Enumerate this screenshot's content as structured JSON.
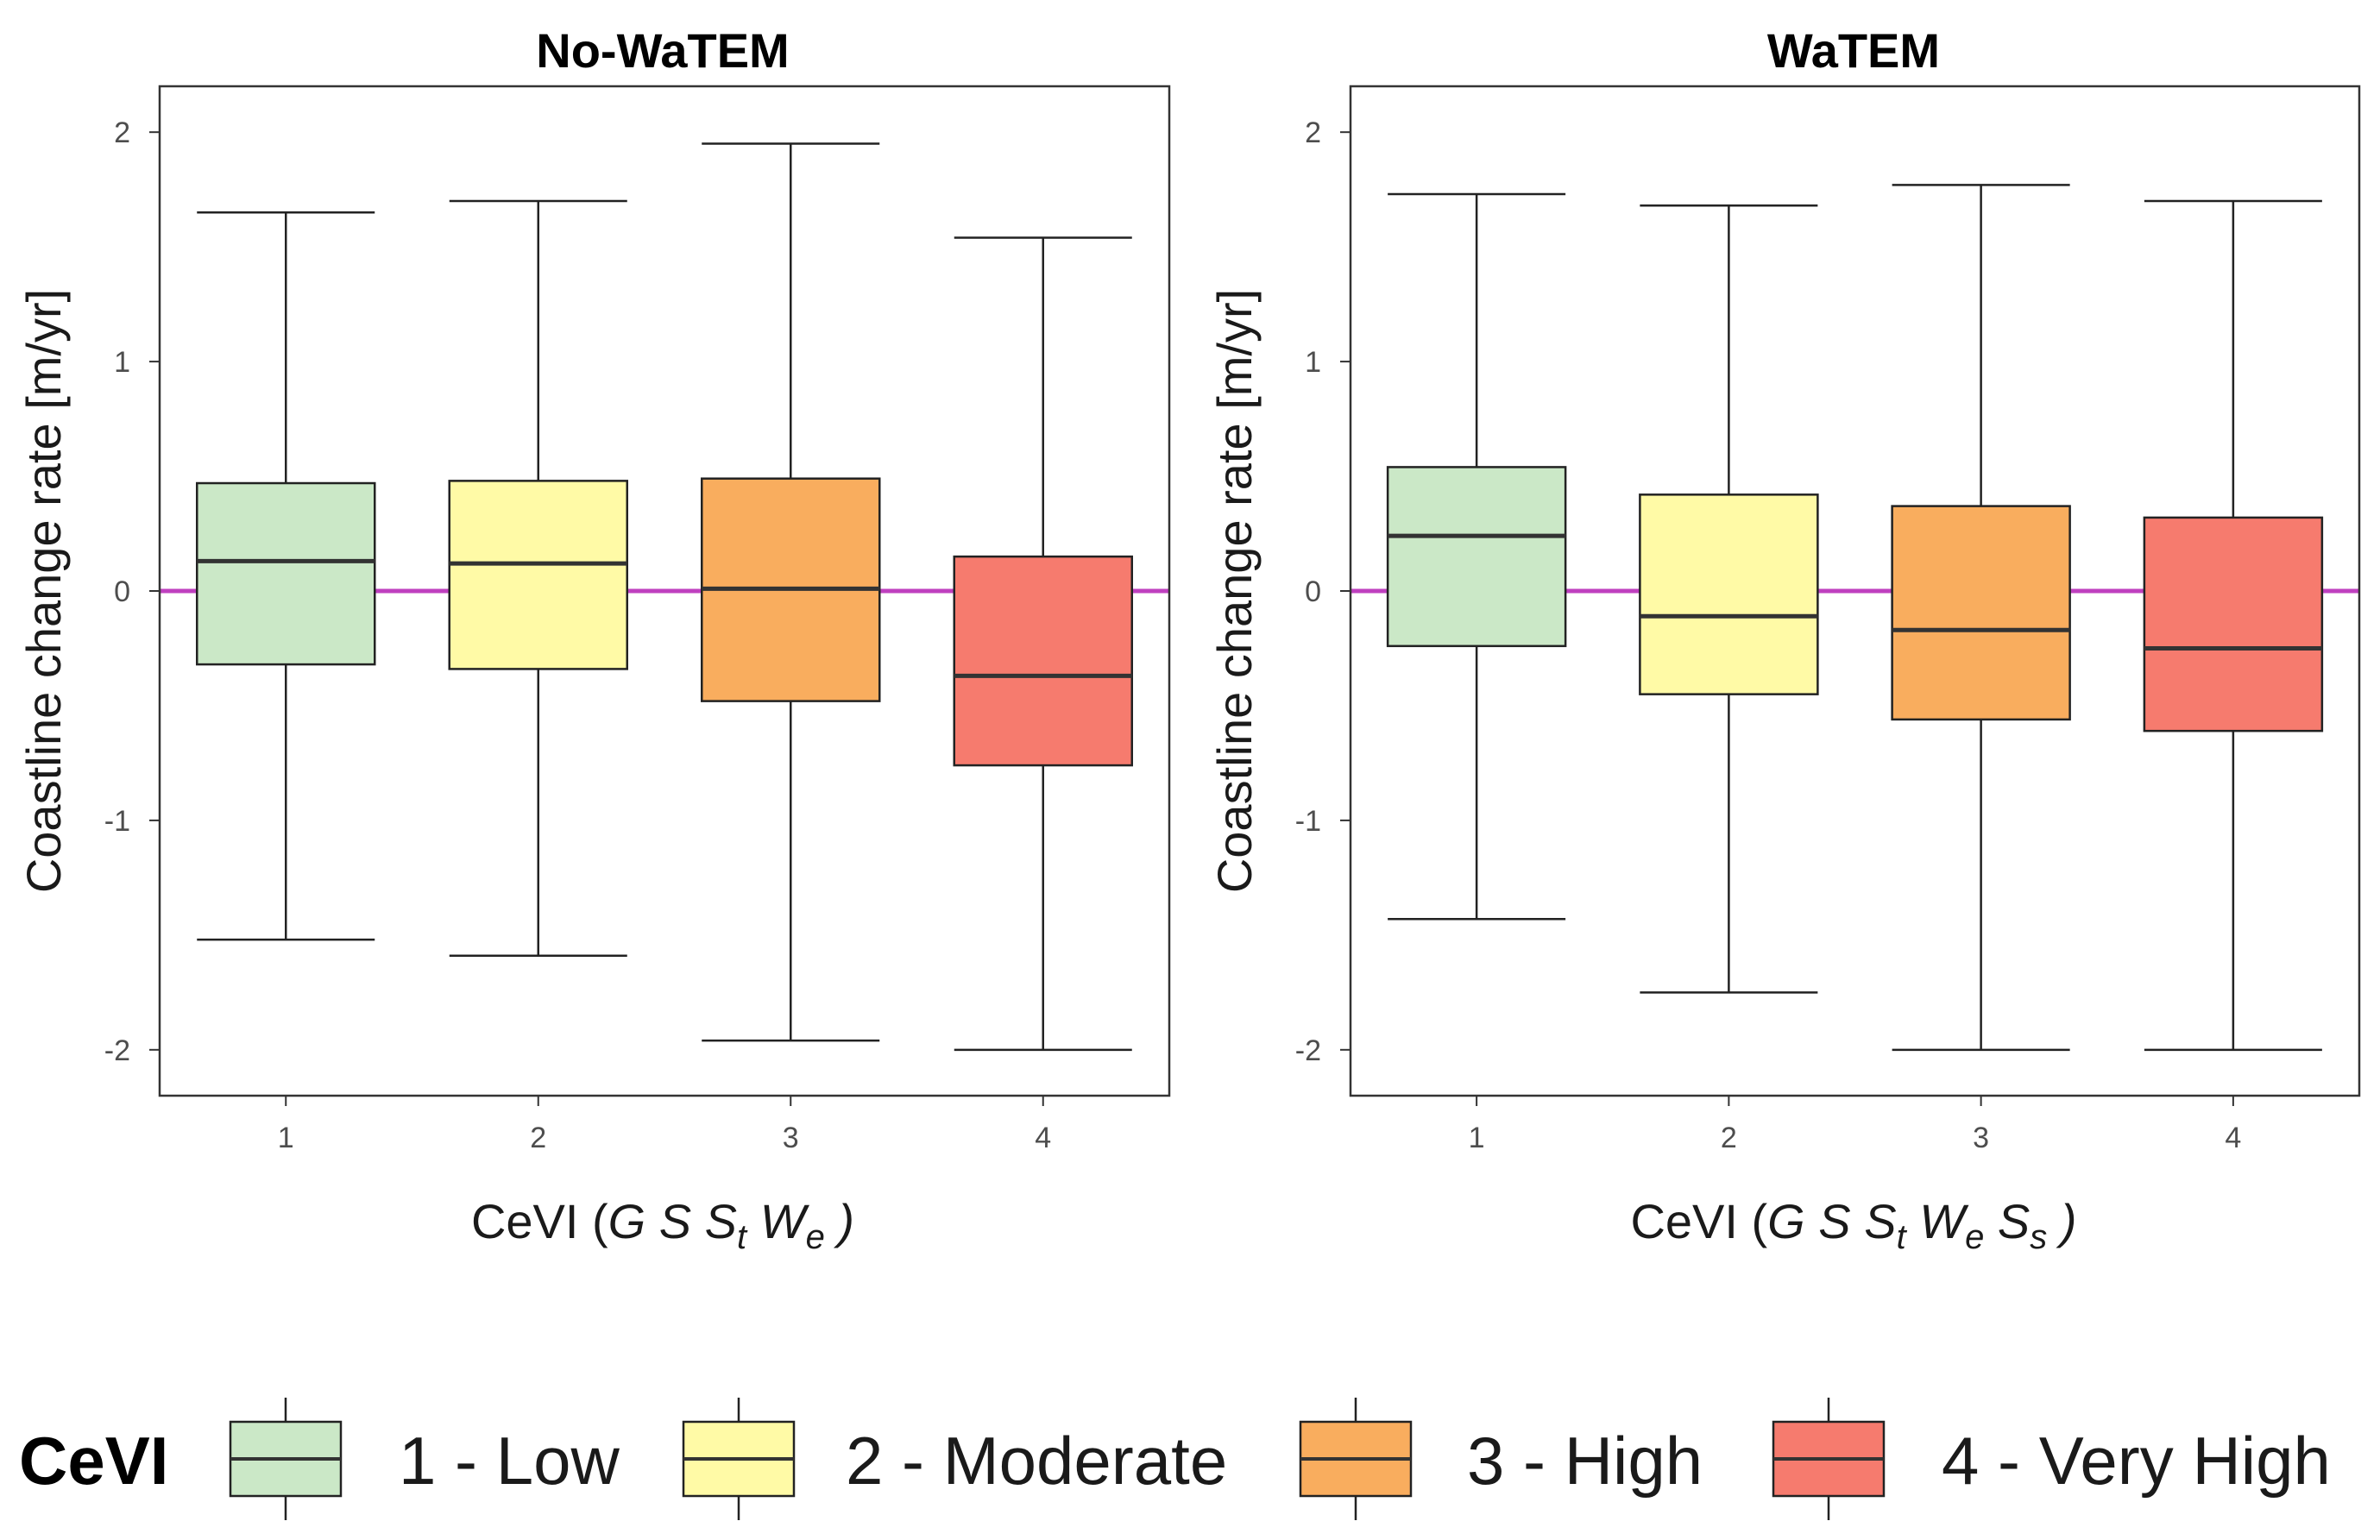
{
  "chart_data": [
    {
      "type": "boxplot",
      "title": "No-WaTEM",
      "ylabel": "Coastline change rate  [m/yr]",
      "xlabel": {
        "prefix": "CeVI (",
        "formula": [
          "G",
          " S",
          " S",
          "t",
          " W",
          "e"
        ],
        "suffix": " )"
      },
      "xlabel_text": "CeVI (G S St We )",
      "categories": [
        "1",
        "2",
        "3",
        "4"
      ],
      "ylim": [
        -2.2,
        2.2
      ],
      "yticks": [
        "-2",
        "-1",
        "0",
        "1",
        "2"
      ],
      "reference_line": 0,
      "boxes": [
        {
          "category": "1",
          "whisker_low": -1.52,
          "q1": -0.32,
          "median": 0.13,
          "q3": 0.47,
          "whisker_high": 1.65
        },
        {
          "category": "2",
          "whisker_low": -1.59,
          "q1": -0.34,
          "median": 0.12,
          "q3": 0.48,
          "whisker_high": 1.7
        },
        {
          "category": "3",
          "whisker_low": -1.96,
          "q1": -0.48,
          "median": 0.01,
          "q3": 0.49,
          "whisker_high": 1.95
        },
        {
          "category": "4",
          "whisker_low": -2.0,
          "q1": -0.76,
          "median": -0.37,
          "q3": 0.15,
          "whisker_high": 1.54
        }
      ]
    },
    {
      "type": "boxplot",
      "title": "WaTEM",
      "ylabel": "Coastline change rate  [m/yr]",
      "xlabel": {
        "prefix": "CeVI (",
        "formula": [
          "G",
          " S",
          " S",
          "t",
          " W",
          "e",
          " S",
          "s"
        ],
        "suffix": " )"
      },
      "xlabel_text": "CeVI (G S St We Ss )",
      "categories": [
        "1",
        "2",
        "3",
        "4"
      ],
      "ylim": [
        -2.2,
        2.2
      ],
      "yticks": [
        "-2",
        "-1",
        "0",
        "1",
        "2"
      ],
      "reference_line": 0,
      "boxes": [
        {
          "category": "1",
          "whisker_low": -1.43,
          "q1": -0.24,
          "median": 0.24,
          "q3": 0.54,
          "whisker_high": 1.73
        },
        {
          "category": "2",
          "whisker_low": -1.75,
          "q1": -0.45,
          "median": -0.11,
          "q3": 0.42,
          "whisker_high": 1.68
        },
        {
          "category": "3",
          "whisker_low": -2.0,
          "q1": -0.56,
          "median": -0.17,
          "q3": 0.37,
          "whisker_high": 1.77
        },
        {
          "category": "4",
          "whisker_low": -2.0,
          "q1": -0.61,
          "median": -0.25,
          "q3": 0.32,
          "whisker_high": 1.7
        }
      ]
    }
  ],
  "legend": {
    "title": "CeVI",
    "items": [
      {
        "label": "1 - Low",
        "color": "#cbe8c7"
      },
      {
        "label": "2 - Moderate",
        "color": "#fffaa6"
      },
      {
        "label": "3 - High",
        "color": "#f9ad5e"
      },
      {
        "label": "4 - Very High",
        "color": "#f67b6e"
      }
    ]
  },
  "colors": {
    "reference_line": "#bf40bf",
    "stroke": "#222222",
    "median": "#333333"
  }
}
